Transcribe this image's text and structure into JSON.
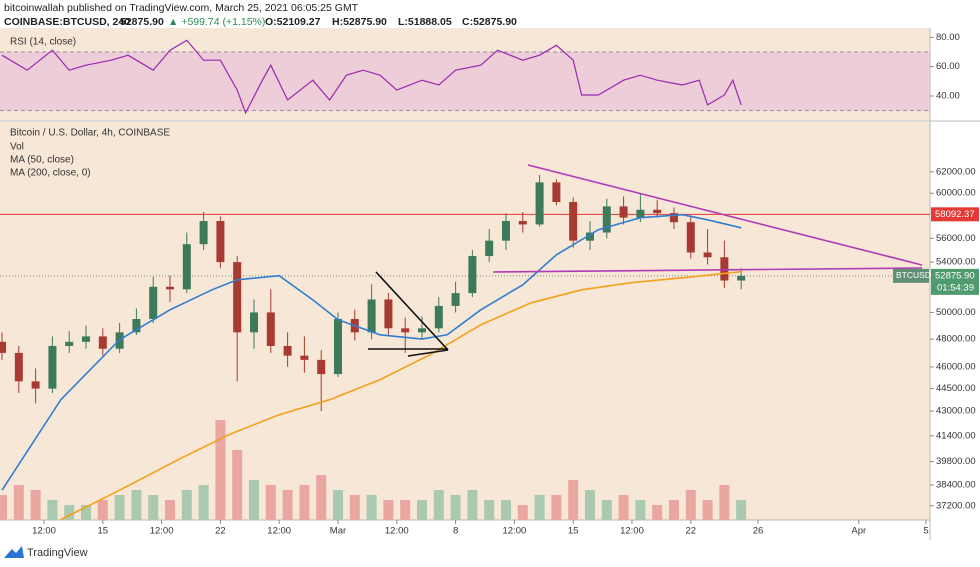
{
  "header": {
    "publisher": "bitcoinwallah published on TradingView.com, March 25, 2021 06:05:25 GMT",
    "symbol": "COINBASE:BTCUSD, 240",
    "last": "52875.90",
    "change": "▲ +599.74 (+1.15%)",
    "open": "O:52109.27",
    "high": "H:52875.90",
    "low": "L:51888.05",
    "close": "C:52875.90"
  },
  "chart_data": [
    {
      "type": "line",
      "title": "RSI (14, close)",
      "color": "#9c27b0",
      "band": [
        30,
        70
      ],
      "band_color": "#e8c4d8",
      "xlim": [
        -0.12,
        55.24
      ],
      "ylim": [
        25,
        85
      ],
      "yticks": [
        {
          "value": 40,
          "label": "40.00"
        },
        {
          "value": 60,
          "label": "60.00"
        },
        {
          "value": 80,
          "label": "80.00"
        }
      ],
      "x": [
        0,
        1.5,
        3,
        4,
        5,
        6.5,
        7.5,
        9,
        10,
        11,
        12,
        13,
        14,
        14.5,
        15.5,
        16,
        17,
        18.5,
        19.5,
        20.5,
        21.5,
        22.5,
        23.5,
        25,
        26,
        27,
        28.5,
        29.5,
        31,
        32,
        33,
        34,
        34.5,
        35.5,
        37,
        38,
        39,
        40.5,
        41.5,
        42,
        43,
        43.5,
        44
      ],
      "values": [
        67.8,
        57.6,
        71.2,
        57.6,
        61,
        64.4,
        67.8,
        57.6,
        71.2,
        78,
        64.4,
        64.4,
        44,
        28.5,
        50.8,
        61,
        37.3,
        50.8,
        37.3,
        54.2,
        57.6,
        54.2,
        44,
        50.8,
        47.5,
        57.6,
        61,
        71.2,
        64.4,
        67.8,
        74.6,
        64.4,
        40.7,
        40.7,
        50.8,
        54.2,
        50.8,
        47.5,
        50.8,
        33.9,
        40.7,
        50.8,
        33.9
      ]
    },
    {
      "type": "candlestick",
      "title": "Bitcoin / U.S. Dollar, 4h, COINBASE",
      "log_scale": true,
      "up_color": "#3d7a5a",
      "down_color": "#a83a32",
      "xlim": [
        -0.12,
        55.24
      ],
      "ylim": [
        36400,
        66800
      ],
      "yticks": [
        {
          "value": 37200,
          "label": "37200.00"
        },
        {
          "value": 38400,
          "label": "38400.00"
        },
        {
          "value": 39800,
          "label": "39800.00"
        },
        {
          "value": 41400,
          "label": "41400.00"
        },
        {
          "value": 43000,
          "label": "43000.00"
        },
        {
          "value": 44500,
          "label": "44500.00"
        },
        {
          "value": 46000,
          "label": "46000.00"
        },
        {
          "value": 48000,
          "label": "48000.00"
        },
        {
          "value": 50000,
          "label": "50000.00"
        },
        {
          "value": 54000,
          "label": "54000.00"
        },
        {
          "value": 56000,
          "label": "56000.00"
        },
        {
          "value": 60000,
          "label": "60000.00"
        },
        {
          "value": 62000,
          "label": "62000.00"
        }
      ],
      "xticks": [
        {
          "value": 2.5,
          "label": "12:00"
        },
        {
          "value": 6,
          "label": "15"
        },
        {
          "value": 9.5,
          "label": "12:00"
        },
        {
          "value": 13,
          "label": "22"
        },
        {
          "value": 16.5,
          "label": "12:00"
        },
        {
          "value": 20,
          "label": "Mar"
        },
        {
          "value": 23.5,
          "label": "12:00"
        },
        {
          "value": 27,
          "label": "8"
        },
        {
          "value": 30.5,
          "label": "12:00"
        },
        {
          "value": 34,
          "label": "15"
        },
        {
          "value": 37.5,
          "label": "12:00"
        },
        {
          "value": 41,
          "label": "22"
        },
        {
          "value": 45,
          "label": "26"
        },
        {
          "value": 51,
          "label": "Apr"
        },
        {
          "value": 55,
          "label": "5"
        }
      ],
      "ohlc": {
        "open": [
          47800,
          47000,
          45000,
          44500,
          47500,
          47800,
          48200,
          47300,
          48500,
          49500,
          52000,
          51800,
          55500,
          57500,
          54000,
          48500,
          50000,
          47500,
          46800,
          46500,
          45500,
          49500,
          48500,
          51000,
          48800,
          48500,
          48800,
          50500,
          51500,
          54500,
          55800,
          57500,
          57200,
          61000,
          59200,
          55800,
          56500,
          58800,
          57800,
          58500,
          58200,
          57400,
          54800,
          54400,
          52500
        ],
        "high": [
          48500,
          47500,
          45900,
          48200,
          48600,
          49000,
          48800,
          49200,
          50300,
          52800,
          52900,
          56500,
          58300,
          57900,
          54500,
          51000,
          51800,
          48500,
          48200,
          47200,
          50000,
          50200,
          52200,
          51500,
          49600,
          49700,
          51200,
          52400,
          55000,
          56800,
          58200,
          58300,
          61700,
          61300,
          59600,
          57500,
          59500,
          59700,
          59900,
          59400,
          58700,
          58000,
          56800,
          55800,
          53500
        ],
        "low": [
          46500,
          44200,
          43500,
          44200,
          47000,
          47300,
          46800,
          47000,
          48300,
          49200,
          50800,
          51500,
          55000,
          53500,
          45000,
          47300,
          47000,
          46000,
          45600,
          43000,
          45300,
          47900,
          48000,
          48200,
          47000,
          48000,
          48500,
          50000,
          51200,
          54000,
          55000,
          56500,
          57000,
          58900,
          55200,
          55000,
          56000,
          57200,
          57400,
          57800,
          56800,
          54300,
          53800,
          51900,
          51800
        ],
        "close": [
          47000,
          45000,
          44500,
          47500,
          47800,
          48200,
          47300,
          48500,
          49500,
          52000,
          51800,
          55500,
          57500,
          54000,
          48500,
          50000,
          47500,
          46800,
          46500,
          45500,
          49500,
          48500,
          51000,
          48800,
          48500,
          48800,
          50500,
          51500,
          54500,
          55800,
          57500,
          57200,
          61000,
          59200,
          55800,
          56500,
          58800,
          57800,
          58500,
          58200,
          57400,
          54800,
          54400,
          52500,
          52875.9
        ]
      },
      "volume": {
        "name": "Vol",
        "vlim": [
          0,
          100
        ],
        "up_color": "#a9c9b0",
        "down_color": "#eaa6a0",
        "values": [
          25,
          35,
          30,
          20,
          15,
          15,
          20,
          25,
          30,
          25,
          20,
          30,
          35,
          100,
          70,
          40,
          35,
          30,
          35,
          45,
          30,
          25,
          25,
          20,
          20,
          20,
          30,
          25,
          30,
          20,
          20,
          15,
          25,
          25,
          40,
          30,
          20,
          25,
          20,
          15,
          20,
          30,
          20,
          35,
          20
        ]
      },
      "series": [
        {
          "name": "MA (50, close)",
          "color": "#2f7fd1",
          "x": [
            0,
            3.5,
            7,
            10,
            12.5,
            14,
            16.5,
            18.5,
            20,
            22.5,
            25,
            26.5,
            28.5,
            31,
            33,
            35.5,
            38,
            40.5,
            42,
            44
          ],
          "values": [
            38100,
            43750,
            47960,
            50200,
            51760,
            52560,
            52890,
            50970,
            49450,
            48320,
            48000,
            48320,
            50200,
            52160,
            54610,
            56740,
            57790,
            58060,
            57610,
            56910
          ]
        },
        {
          "name": "MA (200, close, 0)",
          "color": "#f5a01a",
          "x": [
            3.5,
            7,
            10.5,
            13.5,
            16.5,
            19.5,
            22.5,
            25.5,
            28.5,
            31.5,
            34.5,
            37.5,
            40.5,
            44
          ],
          "values": [
            36420,
            38100,
            39920,
            41470,
            42760,
            43750,
            45110,
            46880,
            49060,
            50740,
            51760,
            52330,
            52720,
            53210
          ]
        }
      ],
      "price_line": {
        "value": 58092.37,
        "color": "#e53935"
      },
      "last_price": {
        "symbol": "BTCUSD",
        "value": 52875.9,
        "label": "52875.90",
        "countdown": "01:54:39",
        "color": "#4f9a6e"
      }
    }
  ],
  "footer": {
    "brand": "TradingView"
  }
}
